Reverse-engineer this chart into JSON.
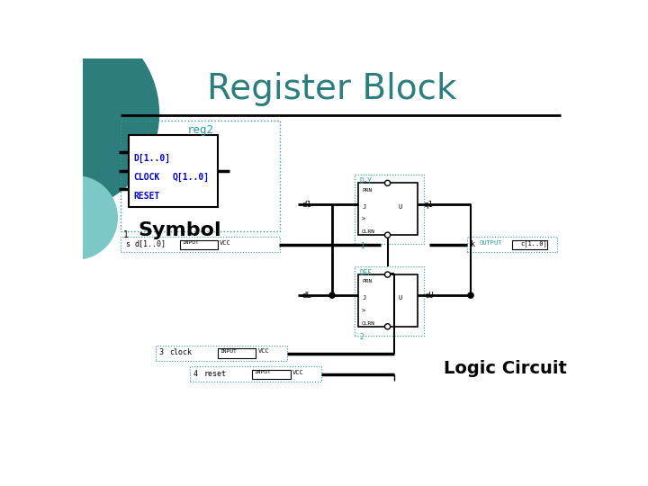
{
  "title": "Register Block",
  "title_color": "#2e7d7d",
  "bg_color": "#ffffff",
  "teal_circle_color": "#2e7d7d",
  "light_teal_color": "#7cc8c8",
  "symbol_text_color": "#0000cc",
  "dotted_color": "#2e9999",
  "wire_color": "#000000",
  "label_symbol": "Symbol",
  "label_logic": "Logic Circuit"
}
